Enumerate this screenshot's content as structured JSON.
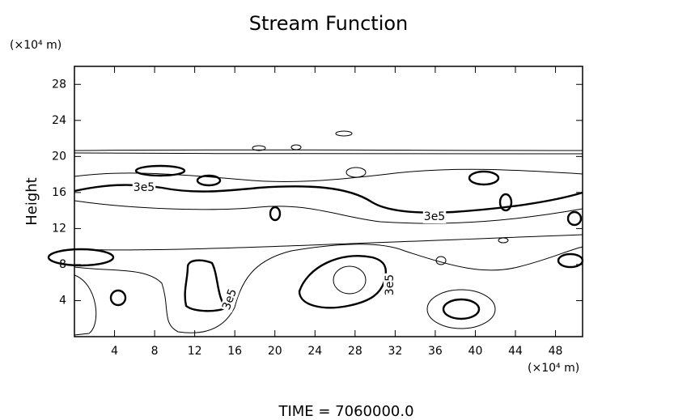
{
  "chart_data": {
    "type": "contour",
    "title": "Stream Function",
    "y_unit": "(×10⁴ m)",
    "ylabel": "Height",
    "x_unit": "(×10⁴ m)",
    "footer": "TIME  =  7060000.0",
    "xlim": [
      0,
      50.7
    ],
    "xticks": [
      4,
      8,
      12,
      16,
      20,
      24,
      28,
      32,
      36,
      40,
      44,
      48
    ],
    "ylim": [
      0,
      30
    ],
    "yticks": [
      4,
      8,
      12,
      16,
      20,
      24,
      28
    ],
    "contour_labels": [
      "3e5",
      "3e5",
      "3e5",
      "3e5"
    ]
  }
}
